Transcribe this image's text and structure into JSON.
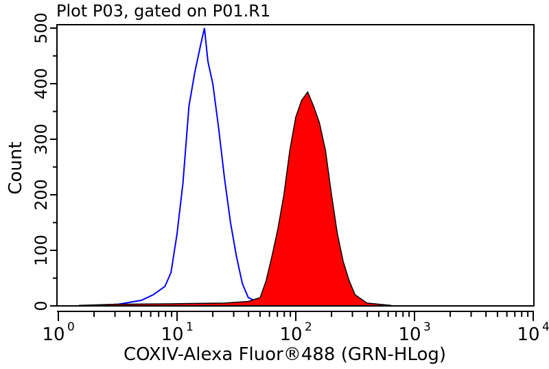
{
  "chart_data": {
    "type": "area",
    "title": "Plot P03, gated on P01.R1",
    "xlabel": "COXIV-Alexa Fluor®488 (GRN-HLog)",
    "ylabel": "Count",
    "xscale": "log",
    "xlim": [
      1,
      10000
    ],
    "ylim": [
      0,
      506
    ],
    "x_tick_labels": [
      {
        "base": "10",
        "exp": "0"
      },
      {
        "base": "10",
        "exp": "1"
      },
      {
        "base": "10",
        "exp": "2"
      },
      {
        "base": "10",
        "exp": "3"
      },
      {
        "base": "10",
        "exp": "4"
      }
    ],
    "y_tick_labels": [
      "0",
      "100",
      "200",
      "300",
      "400",
      "500"
    ],
    "grid": false,
    "series": [
      {
        "style": "outline",
        "color": "#0000ff",
        "x": [
          2,
          3.2,
          5,
          6.3,
          7.9,
          8.9,
          10,
          11.2,
          12.6,
          14.1,
          15.8,
          17,
          18.2,
          20,
          22.4,
          25.1,
          28.2,
          31.6,
          35.5,
          39.8,
          50.1,
          63.1
        ],
        "y": [
          1,
          3,
          10,
          20,
          35,
          60,
          130,
          220,
          360,
          420,
          470,
          500,
          440,
          400,
          320,
          230,
          150,
          90,
          40,
          15,
          5,
          2
        ]
      },
      {
        "style": "filled",
        "color": "#ff0000",
        "outline": "#000000",
        "x": [
          1.5,
          3,
          10,
          25.1,
          39.8,
          50.1,
          56.2,
          63.1,
          70.8,
          79.4,
          89.1,
          100,
          112,
          126,
          141,
          158,
          178,
          200,
          224,
          251,
          282,
          316,
          398,
          631
        ],
        "y": [
          1,
          3,
          4,
          5,
          8,
          15,
          45,
          90,
          140,
          200,
          280,
          340,
          370,
          385,
          360,
          330,
          280,
          200,
          130,
          80,
          45,
          20,
          5,
          1
        ]
      }
    ]
  }
}
